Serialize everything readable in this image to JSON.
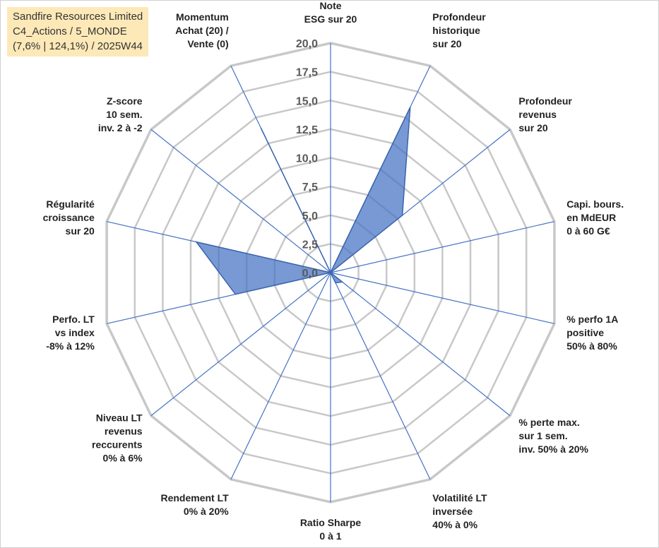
{
  "title_box": {
    "line1": "Sandfire Resources Limited",
    "line2": "C4_Actions / 5_MONDE",
    "line3": "(7,6% | 124,1%) / 2025W44"
  },
  "colors": {
    "grid": "#c8c8c8",
    "spoke": "#4472c4",
    "fill": "#4472c4",
    "title_bg": "#fde9b8"
  },
  "chart_data": {
    "type": "radar",
    "title": "",
    "range": [
      0,
      20
    ],
    "ticks": [
      "0,0",
      "2,5",
      "5,0",
      "7,5",
      "10,0",
      "12,5",
      "15,0",
      "17,5",
      "20,0"
    ],
    "tick_values": [
      0,
      2.5,
      5,
      7.5,
      10,
      12.5,
      15,
      17.5,
      20
    ],
    "gridlines_per_axis": 8,
    "axes": [
      {
        "label": [
          "Note",
          "ESG sur 20"
        ]
      },
      {
        "label": [
          "Profondeur",
          "historique",
          "sur 20"
        ]
      },
      {
        "label": [
          "Profondeur",
          "revenus",
          "sur 20"
        ]
      },
      {
        "label": [
          "Capi. bours.",
          "en MdEUR",
          "0 à 60 G€"
        ]
      },
      {
        "label": [
          "% perfo 1A",
          "positive",
          "50% à 80%"
        ]
      },
      {
        "label": [
          "% perte max.",
          "sur 1 sem.",
          "inv. 50% à 20%"
        ]
      },
      {
        "label": [
          "Volatilité LT",
          "inversée",
          "40% à 0%"
        ]
      },
      {
        "label": [
          "Ratio Sharpe",
          "0 à 1"
        ]
      },
      {
        "label": [
          "Rendement LT",
          "0% à 20%"
        ]
      },
      {
        "label": [
          "Niveau LT",
          "revenus",
          "reccurents",
          "0% à 6%"
        ]
      },
      {
        "label": [
          "Perfo. LT",
          "vs index",
          "-8% à 12%"
        ]
      },
      {
        "label": [
          "Régularité",
          "croissance",
          "sur 20"
        ]
      },
      {
        "label": [
          "Z-score",
          "10 sem.",
          "inv. 2 à -2"
        ]
      },
      {
        "label": [
          "Momentum",
          "Achat (20) /",
          "Vente (0)"
        ]
      }
    ],
    "series": [
      {
        "values": [
          0,
          16,
          8,
          0,
          0,
          1.3,
          1,
          0,
          0,
          0,
          8.5,
          12,
          0,
          14
        ]
      }
    ]
  }
}
